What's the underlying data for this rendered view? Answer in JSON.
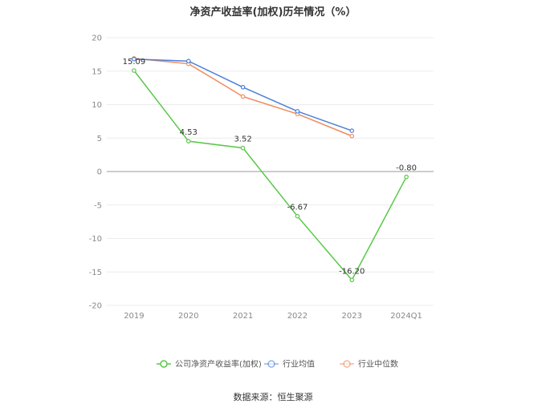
{
  "title": "净资产收益率(加权)历年情况（%）",
  "source": "数据来源：恒生聚源",
  "chart_data": {
    "type": "line",
    "categories": [
      "2019",
      "2020",
      "2021",
      "2022",
      "2023",
      "2024Q1"
    ],
    "ylim": [
      -20,
      20
    ],
    "yticks": [
      20,
      15,
      10,
      5,
      0,
      -5,
      -10,
      -15,
      -20
    ],
    "grid": true,
    "legend_position": "bottom",
    "series": [
      {
        "name": "公司净资产收益率(加权)",
        "color": "#5ac84a",
        "values": [
          15.09,
          4.53,
          3.52,
          -6.67,
          -16.2,
          -0.8
        ],
        "labels": [
          "15.09",
          "4.53",
          "3.52",
          "-6.67",
          "-16.20",
          "-0.80"
        ]
      },
      {
        "name": "行业均值",
        "color": "#4a7fdc",
        "values": [
          16.8,
          16.5,
          12.6,
          9.0,
          6.1,
          null
        ]
      },
      {
        "name": "行业中位数",
        "color": "#f08a5d",
        "values": [
          16.9,
          16.1,
          11.2,
          8.6,
          5.3,
          null
        ]
      }
    ]
  }
}
